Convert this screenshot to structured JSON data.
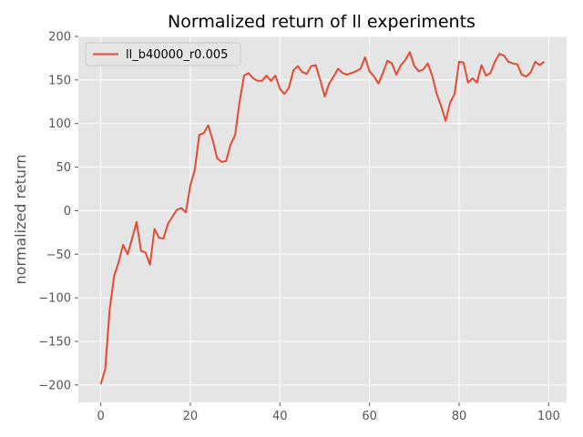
{
  "chart_data": {
    "type": "line",
    "title": "Normalized return of ll experiments",
    "xlabel": "",
    "ylabel": "normalized return",
    "xlim": [
      -5,
      104
    ],
    "ylim": [
      -220,
      200
    ],
    "xticks": [
      0,
      20,
      40,
      60,
      80,
      100
    ],
    "yticks": [
      -200,
      -150,
      -100,
      -50,
      0,
      50,
      100,
      150,
      200
    ],
    "xtick_labels": [
      "0",
      "20",
      "40",
      "60",
      "80",
      "100"
    ],
    "ytick_labels": [
      "−200",
      "−150",
      "−100",
      "−50",
      "0",
      "50",
      "100",
      "150",
      "200"
    ],
    "grid": true,
    "legend_position": "top-left",
    "colors": {
      "background": "#e5e5e5",
      "grid": "#ffffff",
      "series": "#e24a33"
    },
    "series": [
      {
        "name": "ll_b40000_r0.005",
        "x": [
          0,
          1,
          2,
          3,
          4,
          5,
          6,
          7,
          8,
          9,
          10,
          11,
          12,
          13,
          14,
          15,
          16,
          17,
          18,
          19,
          20,
          21,
          22,
          23,
          24,
          25,
          26,
          27,
          28,
          29,
          30,
          31,
          32,
          33,
          34,
          35,
          36,
          37,
          38,
          39,
          40,
          41,
          42,
          43,
          44,
          45,
          46,
          47,
          48,
          49,
          50,
          51,
          52,
          53,
          54,
          55,
          56,
          57,
          58,
          59,
          60,
          61,
          62,
          63,
          64,
          65,
          66,
          67,
          68,
          69,
          70,
          71,
          72,
          73,
          74,
          75,
          76,
          77,
          78,
          79,
          80,
          81,
          82,
          83,
          84,
          85,
          86,
          87,
          88,
          89,
          90,
          91,
          92,
          93,
          94,
          95,
          96,
          97,
          98,
          99
        ],
        "y": [
          -199,
          -182,
          -113,
          -75,
          -59,
          -39,
          -50,
          -32,
          -13,
          -46,
          -48,
          -62,
          -21,
          -31,
          -32,
          -15,
          -7,
          1,
          3,
          -2,
          29,
          47,
          87,
          89,
          98,
          81,
          60,
          56,
          57,
          76,
          87,
          125,
          155,
          158,
          152,
          149,
          149,
          155,
          149,
          155,
          140,
          134,
          141,
          161,
          166,
          159,
          157,
          166,
          167,
          150,
          131,
          146,
          154,
          163,
          158,
          156,
          158,
          160,
          163,
          176,
          160,
          154,
          146,
          158,
          172,
          169,
          156,
          167,
          173,
          182,
          166,
          160,
          162,
          169,
          155,
          134,
          120,
          103,
          124,
          134,
          171,
          170,
          147,
          152,
          147,
          167,
          155,
          158,
          171,
          180,
          178,
          171,
          169,
          168,
          156,
          154,
          159,
          171,
          167,
          171
        ]
      }
    ]
  }
}
